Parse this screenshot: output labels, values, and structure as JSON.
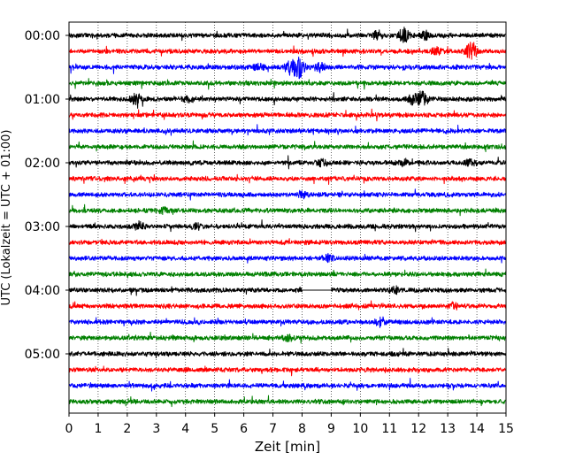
{
  "chart_data": {
    "type": "line",
    "title": "",
    "xlabel": "Zeit  [min]",
    "ylabel": "UTC (Lokalzeit = UTC + 01:00)",
    "xlim": [
      0,
      15
    ],
    "x_ticks": [
      "0",
      "1",
      "2",
      "3",
      "4",
      "5",
      "6",
      "7",
      "8",
      "9",
      "10",
      "11",
      "12",
      "13",
      "14",
      "15"
    ],
    "y_tick_labels": [
      "00:00",
      "01:00",
      "02:00",
      "03:00",
      "04:00",
      "05:00"
    ],
    "row_interval_min": 15,
    "rows_per_hour": 4,
    "grid": "vertical dotted",
    "colors": [
      "#000000",
      "#ff0000",
      "#0000ff",
      "#008000"
    ],
    "series": [
      {
        "start": "00:00",
        "events": [
          {
            "t": 10.6,
            "amp": 0.45
          },
          {
            "t": 11.5,
            "amp": 0.7
          },
          {
            "t": 12.2,
            "amp": 0.35
          }
        ]
      },
      {
        "start": "00:15",
        "events": [
          {
            "t": 12.6,
            "amp": 0.35
          },
          {
            "t": 13.8,
            "amp": 0.95
          }
        ]
      },
      {
        "start": "00:30",
        "events": [
          {
            "t": 6.5,
            "amp": 0.3
          },
          {
            "t": 7.6,
            "amp": 0.6
          },
          {
            "t": 7.9,
            "amp": 1.0
          },
          {
            "t": 8.6,
            "amp": 0.4
          }
        ]
      },
      {
        "start": "00:45",
        "events": []
      },
      {
        "start": "01:00",
        "events": [
          {
            "t": 2.3,
            "amp": 0.55
          },
          {
            "t": 4.1,
            "amp": 0.3
          },
          {
            "t": 11.8,
            "amp": 0.5
          },
          {
            "t": 12.1,
            "amp": 0.7
          }
        ]
      },
      {
        "start": "01:15",
        "events": []
      },
      {
        "start": "01:30",
        "events": []
      },
      {
        "start": "01:45",
        "events": []
      },
      {
        "start": "02:00",
        "events": [
          {
            "t": 8.7,
            "amp": 0.3
          },
          {
            "t": 11.5,
            "amp": 0.25
          },
          {
            "t": 13.8,
            "amp": 0.3
          }
        ]
      },
      {
        "start": "02:15",
        "events": []
      },
      {
        "start": "02:30",
        "events": [
          {
            "t": 8.0,
            "amp": 0.25
          }
        ]
      },
      {
        "start": "02:45",
        "events": [
          {
            "t": 3.2,
            "amp": 0.25
          }
        ]
      },
      {
        "start": "03:00",
        "events": [
          {
            "t": 2.4,
            "amp": 0.3
          },
          {
            "t": 4.4,
            "amp": 0.25
          }
        ]
      },
      {
        "start": "03:15",
        "events": []
      },
      {
        "start": "03:30",
        "events": [
          {
            "t": 8.9,
            "amp": 0.3
          }
        ]
      },
      {
        "start": "03:45",
        "events": []
      },
      {
        "start": "04:00",
        "gap": [
          8.0,
          9.0
        ],
        "events": [
          {
            "t": 11.2,
            "amp": 0.3
          }
        ]
      },
      {
        "start": "04:15",
        "events": [
          {
            "t": 13.2,
            "amp": 0.25
          }
        ]
      },
      {
        "start": "04:30",
        "events": [
          {
            "t": 10.7,
            "amp": 0.35
          }
        ]
      },
      {
        "start": "04:45",
        "events": [
          {
            "t": 7.5,
            "amp": 0.25
          }
        ]
      },
      {
        "start": "05:00",
        "events": []
      },
      {
        "start": "05:15",
        "events": []
      },
      {
        "start": "05:30",
        "events": []
      },
      {
        "start": "05:45",
        "events": []
      }
    ]
  }
}
